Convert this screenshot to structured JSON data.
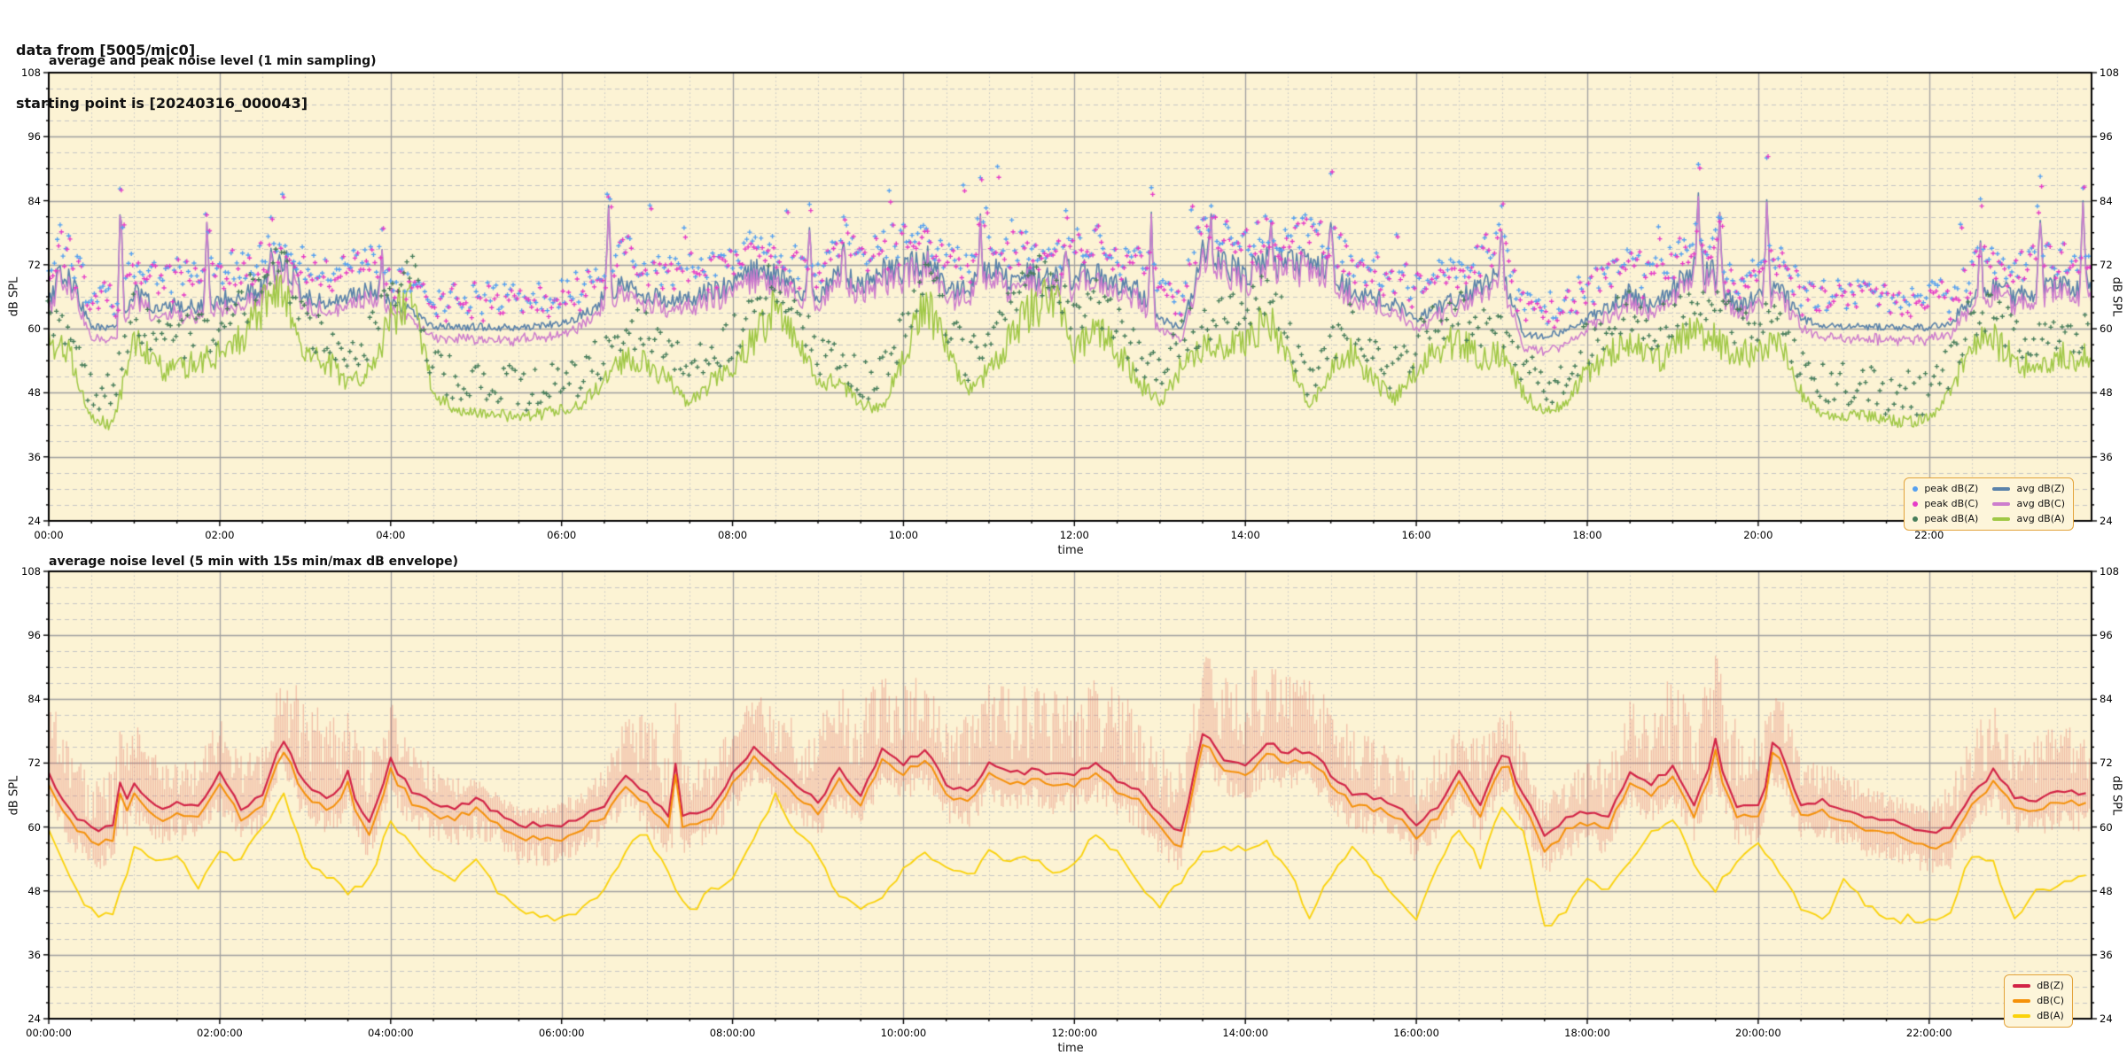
{
  "header": {
    "line1": "data from [5005/mic0]",
    "line2": "starting point is [20240316_000043]"
  },
  "figure": {
    "background": "#ffffff",
    "plot_background": "#fcf3d4",
    "grid_major_color": "#a0a0a0",
    "grid_minor_color": "#c6c6c6",
    "spine_color": "#000000",
    "legend_border_color": "#e3a33b",
    "legend_background": "#fdf5da",
    "envelope_color": "rgba(226,108,96,0.38)"
  },
  "chart_data": [
    {
      "type": "line+scatter",
      "title": "average and peak noise level (1 min sampling)",
      "xlabel": "time",
      "ylabel_left": "dB SPL",
      "ylabel_right": "dB SPL",
      "ylim": [
        24,
        108
      ],
      "yticks": [
        24,
        36,
        48,
        60,
        72,
        84,
        96,
        108
      ],
      "y_minor_step": 3,
      "xlim_hours": [
        0,
        23.9
      ],
      "xtick_hours": [
        0,
        2,
        4,
        6,
        8,
        10,
        12,
        14,
        16,
        18,
        20,
        22
      ],
      "xtick_labels": [
        "00:00",
        "02:00",
        "04:00",
        "06:00",
        "08:00",
        "10:00",
        "12:00",
        "14:00",
        "16:00",
        "18:00",
        "20:00",
        "22:00"
      ],
      "x_minor_step_hours": 0.5,
      "sampling_minutes": 1,
      "keypoint_step_hours": 0.25,
      "series": [
        {
          "name": "avg dB(Z)",
          "color": "#5a82aa",
          "width": 1.6,
          "keypoints": [
            66,
            69,
            60.5,
            60,
            67,
            64,
            64.5,
            64,
            65.5,
            66,
            68,
            73,
            66,
            65,
            66,
            67,
            65,
            63,
            60.5,
            60.3,
            60.4,
            60.2,
            60.3,
            60.5,
            61,
            62.5,
            66,
            69,
            66.5,
            65,
            66,
            67,
            68,
            71,
            70,
            67,
            66,
            70,
            68,
            71,
            71,
            73,
            68,
            67,
            71,
            69,
            70,
            69,
            70,
            71,
            68,
            67,
            62,
            60,
            74,
            72,
            70,
            73,
            72,
            73,
            70,
            67,
            66,
            64.5,
            62,
            64,
            66,
            68,
            70,
            59,
            58.5,
            59.5,
            62,
            64,
            67,
            64,
            67,
            72,
            70,
            64,
            66,
            68,
            62,
            60.5,
            60.5,
            60.3,
            60.4,
            60.2,
            60.3,
            61,
            66,
            68,
            66,
            67,
            68,
            67,
            68
          ]
        },
        {
          "name": "avg dB(C)",
          "color": "#cd7dcd",
          "width": 1.5,
          "derived_from": "avg dB(Z)",
          "offset_db": -1.4
        },
        {
          "name": "avg dB(A)",
          "color": "#a0c846",
          "width": 1.5,
          "keypoints": [
            57,
            55,
            43,
            42,
            58,
            53,
            52,
            54,
            55,
            58,
            64,
            68,
            55,
            54,
            50,
            52,
            62,
            66,
            48,
            45,
            44,
            44,
            43.5,
            44,
            45,
            46,
            50,
            55,
            54,
            50,
            46,
            50,
            53,
            58,
            64,
            58,
            50,
            50,
            46,
            45,
            55,
            65,
            57,
            48,
            52,
            58,
            64,
            66,
            56,
            60,
            56,
            50,
            46,
            53,
            56,
            57,
            58,
            62,
            55,
            45,
            52,
            56,
            50,
            47,
            52,
            56,
            58,
            54,
            56,
            48,
            44,
            46,
            52,
            55,
            58,
            54,
            56,
            60,
            58,
            55,
            56,
            58,
            48,
            44,
            44,
            43.5,
            43,
            42.5,
            43,
            48,
            57,
            58,
            54,
            52,
            55,
            54,
            56
          ]
        }
      ],
      "spikes_hours_db": [
        [
          0.12,
          72.5
        ],
        [
          0.84,
          84.3
        ],
        [
          1.85,
          79.5
        ],
        [
          2.6,
          75
        ],
        [
          3.9,
          73.5
        ],
        [
          6.55,
          84.2
        ],
        [
          8.9,
          79
        ],
        [
          9.3,
          78.5
        ],
        [
          10.9,
          80.3
        ],
        [
          11.9,
          76
        ],
        [
          12.9,
          80.5
        ],
        [
          13.6,
          80.8
        ],
        [
          14.3,
          77
        ],
        [
          15.0,
          81
        ],
        [
          17.0,
          78
        ],
        [
          19.3,
          84
        ],
        [
          19.55,
          83
        ],
        [
          20.1,
          83.5
        ],
        [
          22.6,
          76
        ],
        [
          23.3,
          80
        ],
        [
          23.8,
          83
        ]
      ],
      "scatter_series": [
        {
          "name": "peak dB(Z)",
          "color": "#55a0f0",
          "above": "avg dB(Z)",
          "typical_offset_db": [
            2,
            12
          ],
          "max_db": 95.8
        },
        {
          "name": "peak dB(C)",
          "color": "#e63cc8",
          "above": "peak dB(Z)",
          "typical_offset_db": [
            -2,
            2
          ]
        },
        {
          "name": "peak dB(A)",
          "color": "#467d5a",
          "above": "avg dB(A)",
          "typical_offset_db": [
            1,
            16
          ],
          "max_db": 86
        }
      ],
      "legend": {
        "position": "lower right",
        "columns": 2,
        "entries": [
          {
            "label": "peak dB(Z)",
            "marker": "dot",
            "color": "#55a0f0"
          },
          {
            "label": "peak dB(C)",
            "marker": "dot",
            "color": "#e63cc8"
          },
          {
            "label": "peak dB(A)",
            "marker": "dot",
            "color": "#467d5a"
          },
          {
            "label": "avg dB(Z)",
            "marker": "line",
            "color": "#5a82aa"
          },
          {
            "label": "avg dB(C)",
            "marker": "line",
            "color": "#cd7dcd"
          },
          {
            "label": "avg dB(A)",
            "marker": "line",
            "color": "#a0c846"
          }
        ]
      },
      "render": {
        "seed": 20240316,
        "line_jitter_db": 2.2,
        "scatter_step_minutes": 2
      }
    },
    {
      "type": "line+envelope",
      "title": "average noise level (5 min with 15s min/max dB envelope)",
      "xlabel": "time",
      "ylabel_left": "dB SPL",
      "ylabel_right": "dB SPL",
      "ylim": [
        24,
        108
      ],
      "yticks": [
        24,
        36,
        48,
        60,
        72,
        84,
        96,
        108
      ],
      "y_minor_step": 3,
      "xlim_hours": [
        0,
        23.9
      ],
      "xtick_hours": [
        0,
        2,
        4,
        6,
        8,
        10,
        12,
        14,
        16,
        18,
        20,
        22
      ],
      "xtick_labels": [
        "00:00:00",
        "02:00:00",
        "04:00:00",
        "06:00:00",
        "08:00:00",
        "10:00:00",
        "12:00:00",
        "14:00:00",
        "16:00:00",
        "18:00:00",
        "20:00:00",
        "22:00:00"
      ],
      "x_minor_step_hours": 0.5,
      "sampling_minutes": 5,
      "envelope_seconds": 15,
      "keypoint_step_hours": 0.25,
      "series": [
        {
          "name": "dB(Z)",
          "color": "#d22346",
          "width": 2.2,
          "keypoints": [
            70,
            63,
            59.5,
            60,
            68,
            63.5,
            64.5,
            64,
            70,
            63.5,
            66,
            76,
            68,
            65.5,
            68,
            61,
            72,
            67,
            64.5,
            63.5,
            65,
            63,
            60.5,
            60.3,
            60.5,
            62,
            64,
            70,
            66,
            62,
            62,
            64,
            70,
            74.5,
            71,
            68,
            64.5,
            71,
            66,
            74,
            72,
            74.5,
            68,
            66.5,
            72,
            70,
            70.5,
            69.5,
            70,
            72,
            69,
            66.5,
            62,
            59,
            77,
            73,
            71,
            75.5,
            74,
            74.5,
            70,
            66.5,
            65.5,
            64.5,
            60.8,
            64,
            70.5,
            64.5,
            73,
            66,
            58.8,
            61.5,
            63,
            62,
            70.5,
            68,
            71.5,
            64.5,
            74,
            63.5,
            64,
            75,
            64,
            65,
            63,
            62,
            61,
            60.3,
            59.3,
            59.5,
            66,
            70.5,
            65.5,
            65,
            67,
            66,
            66.5
          ]
        },
        {
          "name": "dB(C)",
          "color": "#f5910a",
          "width": 2.0,
          "derived_from": "dB(Z)",
          "offset_db": -2.0
        },
        {
          "name": "dB(A)",
          "color": "#fad20a",
          "width": 1.8,
          "keypoints": [
            60,
            50,
            44,
            43.5,
            56,
            53,
            55,
            49,
            55,
            54,
            60,
            66,
            54,
            51,
            48,
            50,
            61,
            57,
            52,
            50.5,
            54,
            48,
            44,
            43,
            42.5,
            45,
            48,
            56,
            59,
            51,
            44,
            48,
            51,
            58,
            66,
            59,
            55,
            47,
            44,
            47,
            52,
            56,
            52,
            50.5,
            55,
            53,
            54.5,
            51,
            52.5,
            59,
            55,
            49,
            45,
            50,
            55,
            56,
            55.5,
            57,
            52,
            43.5,
            51,
            56.5,
            51,
            47.5,
            43,
            52,
            60,
            53,
            64,
            59,
            41,
            44,
            50,
            48,
            53,
            59,
            62,
            53,
            48,
            54,
            57.5,
            52,
            45,
            42,
            50,
            46,
            42,
            43,
            42,
            44.5,
            55,
            53,
            43,
            47.5,
            49.5,
            51,
            53
          ]
        }
      ],
      "spikes_hours_db": [
        [
          0.84,
          70
        ],
        [
          2.7,
          77
        ],
        [
          3.5,
          70
        ],
        [
          4.0,
          73
        ],
        [
          7.35,
          76
        ],
        [
          8.3,
          75
        ],
        [
          9.8,
          76
        ],
        [
          13.55,
          78
        ],
        [
          14.3,
          76
        ],
        [
          17.1,
          74.5
        ],
        [
          19.5,
          76
        ],
        [
          20.15,
          77
        ],
        [
          22.75,
          71
        ]
      ],
      "envelope_upper_amp_db_step_0p5h": [
        14,
        8,
        12,
        6,
        10,
        8,
        16,
        12,
        10,
        6,
        3,
        2,
        3,
        6,
        14,
        10,
        8,
        10,
        14,
        16,
        14,
        12,
        14,
        16,
        14,
        16,
        12,
        14,
        16,
        14,
        12,
        10,
        8,
        10,
        10,
        6,
        8,
        12,
        16,
        18,
        12,
        8,
        6,
        4,
        4,
        12,
        10,
        12,
        10
      ],
      "legend": {
        "position": "lower right",
        "columns": 1,
        "entries": [
          {
            "label": "dB(Z)",
            "marker": "line",
            "color": "#d22346"
          },
          {
            "label": "dB(C)",
            "marker": "line",
            "color": "#f5910a"
          },
          {
            "label": "dB(A)",
            "marker": "line",
            "color": "#fad20a"
          }
        ]
      },
      "render": {
        "seed": 777,
        "line_jitter_db": 1.0,
        "envelope_step_minutes": 1.25
      }
    }
  ]
}
